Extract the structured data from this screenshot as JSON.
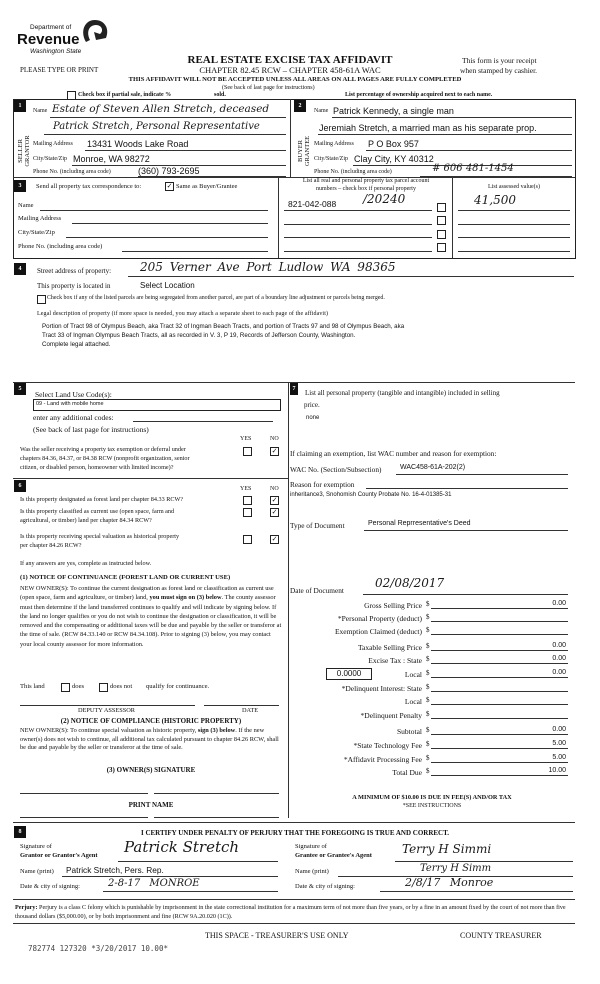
{
  "logo": {
    "line1": "Department of",
    "line2": "Revenue",
    "line3": "Washington State"
  },
  "header": {
    "title": "REAL ESTATE EXCISE TAX AFFIDAVIT",
    "subtitle": "CHAPTER 82.45 RCW – CHAPTER 458-61A WAC",
    "please": "PLEASE TYPE OR PRINT",
    "receipt1": "This form is your receipt",
    "receipt2": "when stamped by cashier.",
    "warning": "THIS AFFIDAVIT WILL NOT BE ACCEPTED UNLESS ALL AREAS ON ALL PAGES ARE FULLY COMPLETED",
    "see_back": "(See back of last page for instructions)",
    "partial_sale": "Check box if partial sale, indicate %",
    "sold": "sold.",
    "percentage": "List percentage of ownership acquired next to each name."
  },
  "section1": {
    "num": "1",
    "side_label1": "SELLER",
    "side_label2": "GRANTOR",
    "name_label": "Name",
    "name": "Estate of Steven Allen Stretch, deceased",
    "name2": "Patrick Stretch, Personal Representative",
    "mailing_label": "Mailing Address",
    "mailing": "13431 Woods Lake Road",
    "city_label": "City/State/Zip",
    "city": "Monroe, WA 98272",
    "phone_label": "Phone No. (including area code)",
    "phone": "(360) 793-2695"
  },
  "section2": {
    "num": "2",
    "side_label1": "BUYER",
    "side_label2": "GRANTEE",
    "name_label": "Name",
    "name": "Patrick Kennedy, a single man",
    "name2": "Jeremiah Stretch, a married man as his separate prop.",
    "mailing_label": "Mailing Address",
    "mailing": "P O Box 957",
    "city_label": "City/State/Zip",
    "city": "Clay City, KY 40312",
    "phone_label": "Phone No. (including area code)",
    "phone": "# 606 481-1454"
  },
  "section3": {
    "num": "3",
    "send_label": "Send all property tax correspondence to:",
    "same_label": "Same as Buyer/Grantee",
    "same_checked": true,
    "name_label": "Name",
    "mailing_label": "Mailing Address",
    "city_label": "City/State/Zip",
    "phone_label": "Phone No. (including area code)",
    "parcel_header1": "List all real and personal property tax parcel account",
    "parcel_header2": "numbers – check box if personal property",
    "assessed_header": "List assessed value(s)",
    "parcel": "821-042-088",
    "parcel_hand": "/20240",
    "assessed": "41,500"
  },
  "section4": {
    "num": "4",
    "street_label": "Street address of property:",
    "street": "205 Verner Ave   Port Ludlow   WA   98365",
    "located_label": "This property is located in",
    "located": "Select Location",
    "segregated": "Check box if any of the listed parcels are being segregated from another parcel, are part of a boundary line adjustment or parcels being merged.",
    "legal_label": "Legal description of property (if more space is needed, you may attach a separate sheet to each page of the affidavit)",
    "legal1": "Portion of Tract 98 of Olympus Beach, aka Tract 32 of Ingman Beach Tracts, and portion of Tracts 97 and 98 of Olympus Beach, aka",
    "legal2": "Tract 33 of  Ingman Olympus Beach Tracts, all as recorded in V. 3, P 19, Records of Jefferson County, Washington.",
    "legal3": "Complete legal attached."
  },
  "section5": {
    "num": "5",
    "label": "Select Land Use Code(s):",
    "code": "09 - Land with mobile home",
    "additional": "enter any additional codes:",
    "see_back": "(See back of last page for instructions)",
    "yes": "YES",
    "no": "NO",
    "q1a": "Was the seller receiving a property tax exemption or deferral under",
    "q1b": "chapters 84.36, 84.37, or 84.38 RCW (nonprofit organization, senior",
    "q1c": "citizen, or disabled person, homeowner with limited income)?",
    "q1_answer": "NO"
  },
  "section6": {
    "num": "6",
    "yes": "YES",
    "no": "NO",
    "q1": "Is this property designated as forest land per chapter 84.33 RCW?",
    "q2a": "Is this property classified as current use (open space, farm and",
    "q2b": "agricultural, or timber) land per chapter 84.34 RCW?",
    "q3a": "Is this property receiving special valuation as historical property",
    "q3b": "per chapter 84.26 RCW?",
    "answers": [
      "NO",
      "NO",
      "NO"
    ],
    "if_yes": "If any answers are yes, complete as instructed below.",
    "notice1_title": "(1) NOTICE OF CONTINUANCE  (FOREST LAND OR CURRENT USE)",
    "notice1_text_a": "NEW OWNER(S): To continue the current designation as forest land or classification as current use (open space, farm and agriculture, or timber) land, ",
    "notice1_bold": "you must sign on (3) below",
    "notice1_text_b": ". The county assessor must then determine if the land transferred continues to qualify and will indicate by signing below. If the land no longer qualifies or you do not wish to continue the designation or classification, it will be removed and the compensating or additional taxes will be due and payable by the seller or transferor at the time of sale. (RCW 84.33.140 or RCW 84.34.108). Prior to signing (3) below, you may contact your local county assessor for more information.",
    "this_land": "This land",
    "does": "does",
    "does_not": "does not",
    "qualify": "qualify for continuance.",
    "deputy": "DEPUTY ASSESSOR",
    "date": "DATE",
    "notice2_title": "(2) NOTICE OF COMPLIANCE (HISTORIC PROPERTY)",
    "notice2_text_a": "NEW OWNER(S): To continue special valuation as historic property, ",
    "notice2_bold": "sign (3) below",
    "notice2_text_b": ". If the new owner(s) does not wish to continue, all additional tax calculated pursuant to chapter 84.26 RCW, shall be due and payable by the seller or transferor at the time of sale.",
    "owner_sig": "(3)  OWNER(S) SIGNATURE",
    "print_name": "PRINT NAME"
  },
  "section7": {
    "num": "7",
    "label1": "List all  personal property (tangible and intangible) included in selling",
    "label2": "price.",
    "value": "none",
    "exemption_label": "If claiming an exemption, list WAC number and reason for exemption:",
    "wac_label": "WAC No. (Section/Subsection)",
    "wac": "WAC458-61A-202(2)",
    "reason_label": "Reason for exemption",
    "reason": "inheritance3, Snohomish County Probate No. 16-4-01385-31",
    "doc_type_label": "Type of Document",
    "doc_type": "Personal Reprresentative's Deed",
    "doc_date_label": "Date of Document",
    "doc_date": "02/08/2017",
    "local_rate": "0.0000",
    "fees": [
      {
        "label": "Gross Selling Price",
        "value": "0.00"
      },
      {
        "label": "*Personal Property (deduct)",
        "value": ""
      },
      {
        "label": "Exemption Claimed (deduct)",
        "value": ""
      },
      {
        "label": "Taxable Selling Price",
        "value": "0.00"
      },
      {
        "label": "Excise Tax : State",
        "value": "0.00"
      },
      {
        "label": "Local",
        "value": "0.00"
      },
      {
        "label": "*Delinquent Interest: State",
        "value": ""
      },
      {
        "label": "Local",
        "value": ""
      },
      {
        "label": "*Delinquent Penalty",
        "value": ""
      },
      {
        "label": "Subtotal",
        "value": "0.00"
      },
      {
        "label": "*State Technology Fee",
        "value": "5.00"
      },
      {
        "label": "*Affidavit Processing Fee",
        "value": "5.00"
      },
      {
        "label": "Total Due",
        "value": "10.00"
      }
    ],
    "currency": "$",
    "minimum": "A MINIMUM OF $10.00 IS DUE IN FEE(S) AND/OR TAX",
    "see_instructions": "*SEE INSTRUCTIONS"
  },
  "section8": {
    "num": "8",
    "certify": "I CERTIFY UNDER PENALTY OF PERJURY THAT THE FOREGOING IS TRUE AND CORRECT.",
    "sig_of": "Signature of",
    "grantor_agent": "Grantor or Grantor's Agent",
    "grantor_sig": "Patrick Stretch",
    "grantee_agent": "Grantee or Grantee's Agent",
    "grantee_sig": "Terry H Simmi",
    "name_print": "Name (print)",
    "grantor_name": "Patrick Stretch, Pers. Rep.",
    "grantee_name": "Terry H Simm",
    "date_city": "Date & city of signing:",
    "grantor_date": "2-8-17    MONROE",
    "grantee_date": "2/8/17    Monroe"
  },
  "footer": {
    "perjury_bold": "Perjury:",
    "perjury_text": " Perjury is a class C felony which is punishable by imprisonment in the state correctional institution for a maximum term of not more than five years, or by a fine in an amount fixed by the court of not more than five thousand dollars ($5,000.00), or by both imprisonment and fine (RCW 9A.20.020 (1C)).",
    "treasurer_space": "THIS SPACE - TREASURER'S USE ONLY",
    "county_treasurer": "COUNTY TREASURER",
    "stamp": "782774 127320 *3/20/2017 10.00*"
  }
}
